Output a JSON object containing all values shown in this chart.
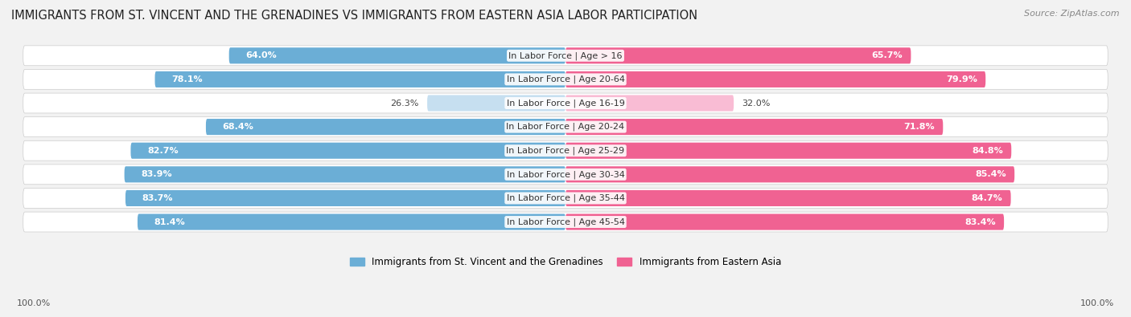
{
  "title": "IMMIGRANTS FROM ST. VINCENT AND THE GRENADINES VS IMMIGRANTS FROM EASTERN ASIA LABOR PARTICIPATION",
  "source": "Source: ZipAtlas.com",
  "categories": [
    "In Labor Force | Age > 16",
    "In Labor Force | Age 20-64",
    "In Labor Force | Age 16-19",
    "In Labor Force | Age 20-24",
    "In Labor Force | Age 25-29",
    "In Labor Force | Age 30-34",
    "In Labor Force | Age 35-44",
    "In Labor Force | Age 45-54"
  ],
  "left_values": [
    64.0,
    78.1,
    26.3,
    68.4,
    82.7,
    83.9,
    83.7,
    81.4
  ],
  "right_values": [
    65.7,
    79.9,
    32.0,
    71.8,
    84.8,
    85.4,
    84.7,
    83.4
  ],
  "left_color": "#6baed6",
  "right_color": "#f06292",
  "left_color_light": "#c6dff0",
  "right_color_light": "#f9bcd4",
  "left_label": "Immigrants from St. Vincent and the Grenadines",
  "right_label": "Immigrants from Eastern Asia",
  "bg_color": "#f2f2f2",
  "row_bg_color": "#ffffff",
  "title_fontsize": 10.5,
  "source_fontsize": 8,
  "cat_fontsize": 8,
  "value_fontsize": 8,
  "legend_fontsize": 8.5,
  "footer_label": "100.0%",
  "footer_fontsize": 8
}
